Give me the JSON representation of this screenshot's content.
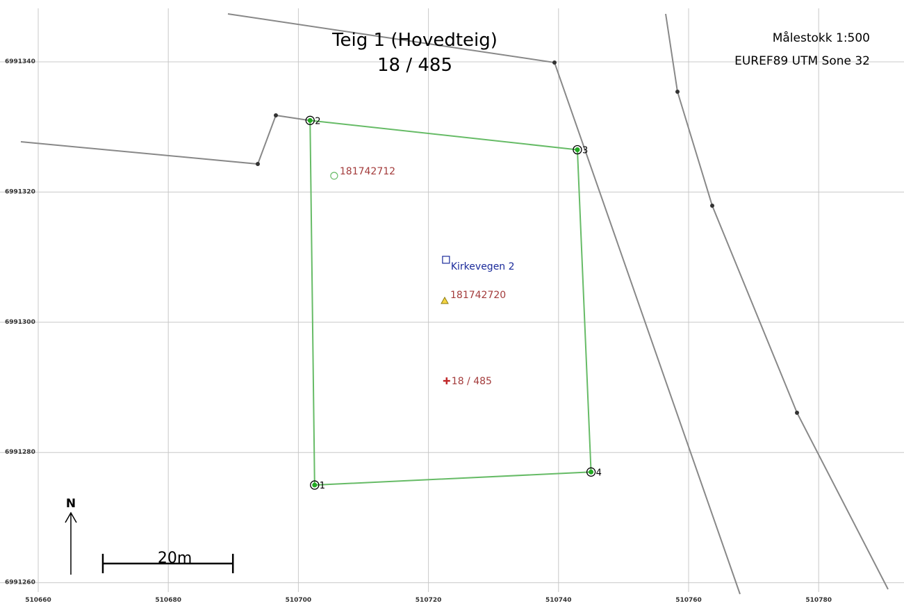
{
  "title": {
    "line1": "Teig 1 (Hovedteig)",
    "line2": "18 / 485"
  },
  "scale_text": "Målestokk 1:500",
  "crs_text": "EUREF89 UTM Sone 32",
  "x_ticks": [
    "510660",
    "510680",
    "510700",
    "510720",
    "510740",
    "510760",
    "510780"
  ],
  "y_ticks": [
    "6991340",
    "6991320",
    "6991300",
    "6991280",
    "6991260"
  ],
  "parcel_corners": [
    {
      "label": "1",
      "e": 510702.5,
      "n": 6991275.0
    },
    {
      "label": "2",
      "e": 510701.8,
      "n": 6991331.0
    },
    {
      "label": "3",
      "e": 510742.9,
      "n": 6991326.5
    },
    {
      "label": "4",
      "e": 510745.0,
      "n": 6991277.0
    }
  ],
  "features": {
    "point_circle": {
      "label": "181742712",
      "e": 510705.5,
      "n": 6991322.5
    },
    "address": {
      "label": "Kirkevegen 2",
      "e": 510722.7,
      "n": 6991309.6
    },
    "building": {
      "label": "181742720",
      "e": 510722.5,
      "n": 6991303.3
    },
    "parcel_mark": {
      "label": "18 / 485",
      "e": 510722.8,
      "n": 6991291.0
    }
  },
  "scalebar_label": "20m",
  "scalebar_length_m": 20,
  "north_label": "N",
  "colors": {
    "parcel_boundary": "#66bb66",
    "parcel_vertex": "#22aa22",
    "neighbor_line": "#888888",
    "grid": "#c8c8c8",
    "label_red": "#a33b3b",
    "label_blue": "#1a2a9a",
    "building_fill": "#f5d442"
  }
}
